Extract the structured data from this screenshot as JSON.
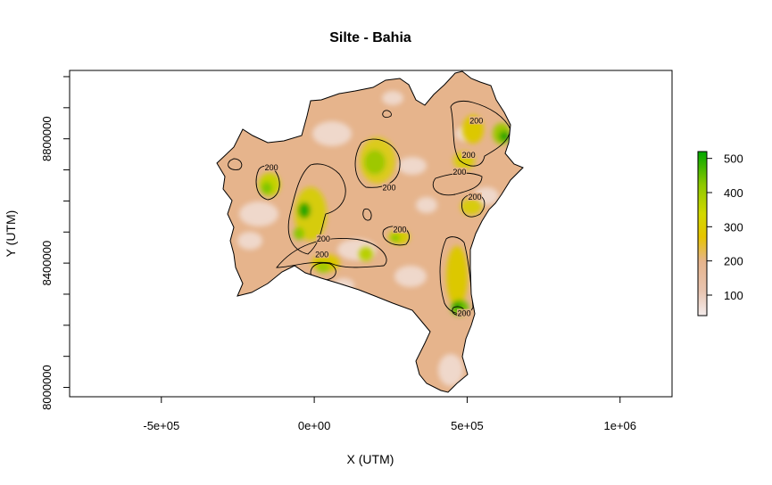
{
  "chart_data": {
    "type": "heatmap",
    "title": "Silte - Bahia",
    "xlabel": "X (UTM)",
    "ylabel": "Y (UTM)",
    "xlim": [
      -800000,
      1170000
    ],
    "ylim": [
      7970000,
      9020000
    ],
    "x_ticks": [
      {
        "value": -500000,
        "label": "-5e+05"
      },
      {
        "value": 0,
        "label": "0e+00"
      },
      {
        "value": 500000,
        "label": "5e+05"
      },
      {
        "value": 1000000,
        "label": "1e+06"
      }
    ],
    "y_ticks": [
      {
        "value": 8000000,
        "label": "8000000"
      },
      {
        "value": 8400000,
        "label": "8400000"
      },
      {
        "value": 8800000,
        "label": "8800000"
      }
    ],
    "legend": {
      "position": "right",
      "range": [
        40,
        520
      ],
      "ticks": [
        {
          "value": 100,
          "label": "100"
        },
        {
          "value": 200,
          "label": "200"
        },
        {
          "value": 300,
          "label": "300"
        },
        {
          "value": 400,
          "label": "400"
        },
        {
          "value": 500,
          "label": "500"
        }
      ],
      "colors": [
        "#f2f2f2",
        "#e8c2a8",
        "#e6b48c",
        "#e6c700",
        "#c8d800",
        "#7ec800",
        "#00a600"
      ]
    },
    "contour_level": 200,
    "contour_labels": [
      {
        "text": "200",
        "x": 530000,
        "y": 8855000
      },
      {
        "text": "200",
        "x": 505000,
        "y": 8745000
      },
      {
        "text": "200",
        "x": 475000,
        "y": 8690000
      },
      {
        "text": "200",
        "x": -140000,
        "y": 8705000
      },
      {
        "text": "200",
        "x": 245000,
        "y": 8640000
      },
      {
        "text": "200",
        "x": 525000,
        "y": 8610000
      },
      {
        "text": "200",
        "x": 280000,
        "y": 8505000
      },
      {
        "text": "200",
        "x": 30000,
        "y": 8475000
      },
      {
        "text": "200",
        "x": 25000,
        "y": 8425000
      },
      {
        "text": "200",
        "x": 490000,
        "y": 8235000
      }
    ]
  }
}
